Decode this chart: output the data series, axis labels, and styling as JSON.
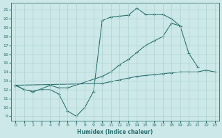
{
  "xlabel": "Humidex (Indice chaleur)",
  "background_color": "#cce8e8",
  "line_color": "#2a7070",
  "grid_color": "#b0d0d0",
  "xlim": [
    -0.5,
    23.5
  ],
  "ylim": [
    8.5,
    21.8
  ],
  "yticks": [
    9,
    10,
    11,
    12,
    13,
    14,
    15,
    16,
    17,
    18,
    19,
    20,
    21
  ],
  "xticks": [
    0,
    1,
    2,
    3,
    4,
    5,
    6,
    7,
    8,
    9,
    10,
    11,
    12,
    13,
    14,
    15,
    16,
    17,
    18,
    19,
    20,
    21,
    22,
    23
  ],
  "line1_x": [
    0,
    1,
    2,
    3,
    4,
    5,
    6,
    7,
    8,
    9,
    10,
    11,
    12,
    13,
    14,
    15,
    16,
    17,
    18,
    19,
    20,
    21
  ],
  "line1_y": [
    12.5,
    12.0,
    11.8,
    12.0,
    12.0,
    11.5,
    9.6,
    9.0,
    10.0,
    11.8,
    19.8,
    20.2,
    20.3,
    20.4,
    21.2,
    20.5,
    20.5,
    20.5,
    20.0,
    19.2,
    16.1,
    14.6
  ],
  "line2_x": [
    0,
    1,
    2,
    3,
    4,
    5,
    6,
    10,
    11,
    12,
    13,
    14,
    15,
    16,
    17,
    18,
    19
  ],
  "line2_y": [
    12.5,
    12.0,
    11.8,
    12.1,
    12.5,
    12.2,
    12.2,
    13.5,
    14.0,
    14.8,
    15.4,
    16.2,
    17.0,
    17.5,
    18.0,
    19.5,
    19.2
  ],
  "line3_x": [
    0,
    10,
    11,
    12,
    13,
    14,
    15,
    16,
    17,
    18,
    19,
    20,
    21,
    22,
    23
  ],
  "line3_y": [
    12.5,
    12.7,
    12.9,
    13.1,
    13.3,
    13.5,
    13.6,
    13.7,
    13.8,
    13.9,
    14.0,
    14.0,
    14.0,
    14.2,
    14.0
  ]
}
